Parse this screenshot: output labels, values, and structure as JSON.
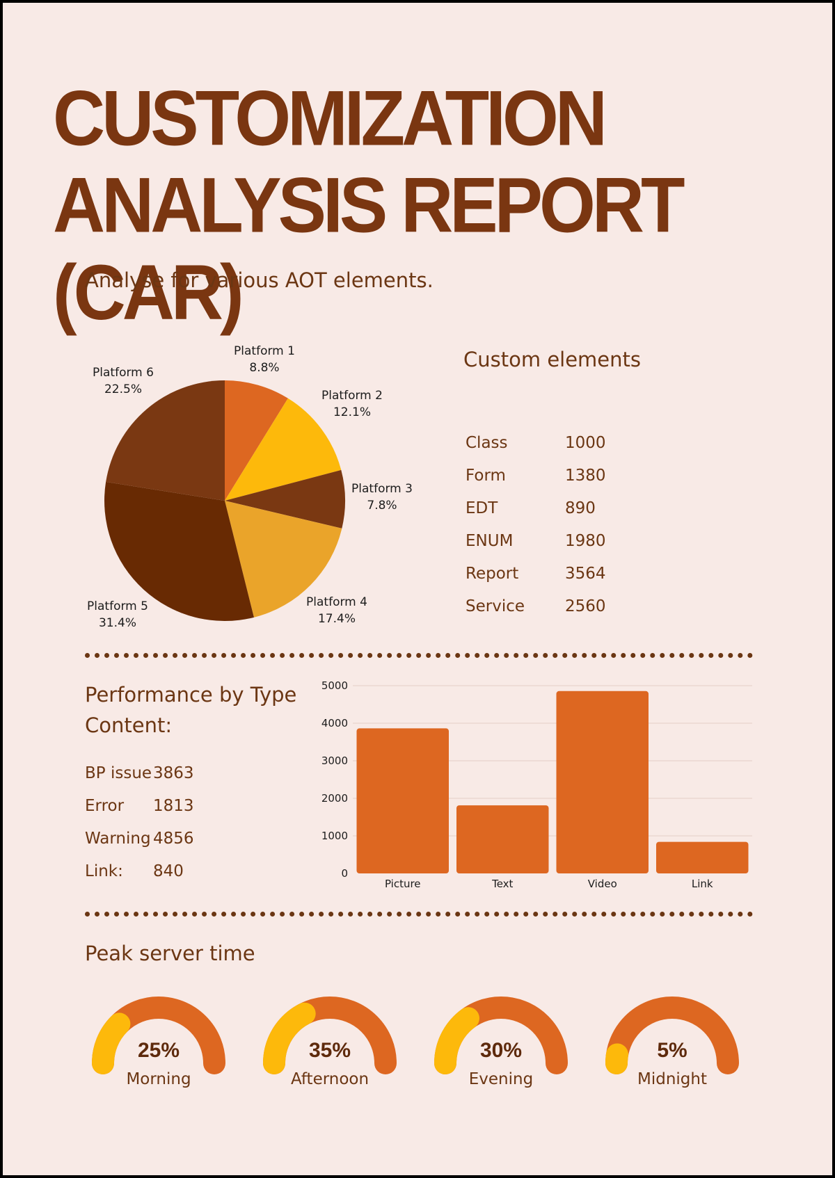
{
  "title": "CUSTOMIZATION ANALYSIS REPORT (CAR)",
  "subtitle": "Analyse for various AOT elements.",
  "colors": {
    "background": "#F8EAE6",
    "brown_text": "#6B3613",
    "title": "#7A3611",
    "orange": "#DD6721",
    "yellow": "#FDB90B"
  },
  "chart_data": [
    {
      "type": "pie",
      "title": "",
      "slices": [
        {
          "label": "Platform 1",
          "value": 8.8,
          "value_label": "8.8%",
          "color": "#DD6721"
        },
        {
          "label": "Platform 2",
          "value": 12.1,
          "value_label": "12.1%",
          "color": "#FDB90B"
        },
        {
          "label": "Platform 3",
          "value": 7.8,
          "value_label": "7.8%",
          "color": "#7A3812"
        },
        {
          "label": "Platform 4",
          "value": 17.4,
          "value_label": "17.4%",
          "color": "#EAA42A"
        },
        {
          "label": "Platform 5",
          "value": 31.4,
          "value_label": "31.4%",
          "color": "#682A03"
        },
        {
          "label": "Platform 6",
          "value": 22.5,
          "value_label": "22.5%",
          "color": "#7A3812"
        }
      ]
    },
    {
      "type": "bar",
      "title": "",
      "xlabel": "",
      "ylabel": "",
      "categories": [
        "Picture",
        "Text",
        "Video",
        "Link"
      ],
      "values": [
        3863,
        1813,
        4856,
        840
      ],
      "ylim": [
        0,
        5000
      ],
      "yticks": [
        0,
        1000,
        2000,
        3000,
        4000,
        5000
      ],
      "grid": true,
      "color": "#DD6721"
    }
  ],
  "custom_elements": {
    "heading": "Custom elements",
    "rows": [
      {
        "name": "Class",
        "value": "1000"
      },
      {
        "name": "Form",
        "value": "1380"
      },
      {
        "name": "EDT",
        "value": "890"
      },
      {
        "name": "ENUM",
        "value": "1980"
      },
      {
        "name": "Report",
        "value": "3564"
      },
      {
        "name": "Service",
        "value": "2560"
      }
    ]
  },
  "performance": {
    "heading": "Performance by Type Content:",
    "rows": [
      {
        "name": "BP issue",
        "value": "3863"
      },
      {
        "name": "Error",
        "value": "1813"
      },
      {
        "name": "Warning",
        "value": "4856"
      },
      {
        "name": "Link:",
        "value": "840"
      }
    ]
  },
  "peak": {
    "heading": "Peak server time",
    "gauges": [
      {
        "label": "Morning",
        "percent_label": "25%",
        "percent": 25
      },
      {
        "label": "Afternoon",
        "percent_label": "35%",
        "percent": 35
      },
      {
        "label": "Evening",
        "percent_label": "30%",
        "percent": 30
      },
      {
        "label": "Midnight",
        "percent_label": "5%",
        "percent": 5
      }
    ]
  }
}
